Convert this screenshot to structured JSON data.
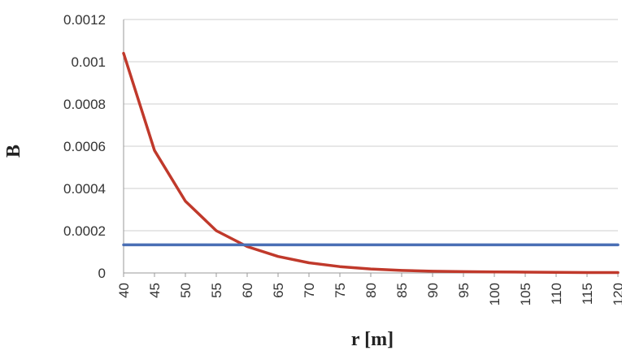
{
  "chart_data": {
    "type": "line",
    "title": "",
    "xlabel": "r [m]",
    "ylabel": "B",
    "xlim": [
      40,
      120
    ],
    "ylim": [
      0,
      0.0012
    ],
    "x_ticks": [
      "40",
      "45",
      "50",
      "55",
      "60",
      "65",
      "70",
      "75",
      "80",
      "85",
      "90",
      "95",
      "100",
      "105",
      "110",
      "115",
      "120"
    ],
    "y_ticks": [
      "0",
      "0.0002",
      "0.0004",
      "0.0006",
      "0.0008",
      "0.001",
      "0.0012"
    ],
    "grid": "horizontal",
    "legend": "none",
    "series": [
      {
        "color": "#C0392B",
        "x": [
          40,
          45,
          50,
          55,
          60,
          65,
          70,
          75,
          80,
          85,
          90,
          95,
          100,
          105,
          110,
          115,
          120
        ],
        "y": [
          0.00104,
          0.00058,
          0.00034,
          0.0002,
          0.000125,
          7.8e-05,
          4.8e-05,
          3e-05,
          1.9e-05,
          1.2e-05,
          8e-06,
          6e-06,
          5e-06,
          4e-06,
          3e-06,
          2e-06,
          2e-06
        ]
      },
      {
        "color": "#4A6FB5",
        "x": [
          40,
          120
        ],
        "y": [
          0.000133,
          0.000133
        ]
      }
    ]
  }
}
